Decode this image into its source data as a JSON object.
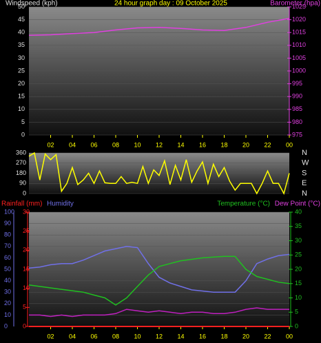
{
  "chart_data": [
    {
      "type": "line",
      "title": "24 hour graph day : 09 October 2025",
      "y_label": "Windspeed (kph)",
      "x": [
        0,
        2,
        4,
        6,
        8,
        10,
        12,
        14,
        16,
        18,
        20,
        22,
        24
      ],
      "xlim": [
        0,
        24
      ],
      "xticks": [
        {
          "value": 2,
          "label": "02"
        },
        {
          "value": 4,
          "label": "04"
        },
        {
          "value": 6,
          "label": "06"
        },
        {
          "value": 8,
          "label": "08"
        },
        10,
        12,
        14,
        16,
        18,
        20,
        22,
        {
          "value": 24,
          "label": "00"
        }
      ],
      "ylim": [
        0,
        50
      ],
      "yticks": [
        0,
        5,
        10,
        15,
        20,
        25,
        30,
        35,
        40,
        45,
        50
      ],
      "y2lim": [
        975,
        1025
      ],
      "y2ticks": [
        975,
        980,
        985,
        990,
        995,
        1000,
        1005,
        1010,
        1015,
        1020,
        1025
      ],
      "series": [
        {
          "name": "Barometer (hpa)",
          "color": "#e040e0",
          "axis": "y2",
          "values": [
            1013.9,
            1014.1,
            1014.6,
            1015,
            1016,
            1016.8,
            1017,
            1016.6,
            1016,
            1015.8,
            1017,
            1019,
            1020.5
          ]
        }
      ]
    },
    {
      "type": "line",
      "x": [
        0,
        0.5,
        1,
        1.5,
        2,
        2.5,
        3,
        3.5,
        4,
        4.5,
        5,
        5.5,
        6,
        6.5,
        7,
        7.5,
        8,
        8.5,
        9,
        9.5,
        10,
        10.5,
        11,
        11.5,
        12,
        12.5,
        13,
        13.5,
        14,
        14.5,
        15,
        15.5,
        16,
        16.5,
        17,
        17.5,
        18,
        18.5,
        19,
        19.5,
        20,
        20.5,
        21,
        21.5,
        22,
        22.5,
        23,
        23.5,
        24
      ],
      "xlim": [
        0,
        24
      ],
      "ylim": [
        0,
        360
      ],
      "yticks": [
        0,
        90,
        180,
        270,
        360
      ],
      "y2ticks": [
        {
          "value": 360,
          "label": "N"
        },
        {
          "value": 270,
          "label": "W"
        },
        {
          "value": 180,
          "label": "S"
        },
        {
          "value": 90,
          "label": "E"
        },
        {
          "value": 0,
          "label": "N"
        }
      ],
      "series": [
        {
          "color": "#ffff00",
          "axis": "y",
          "values": [
            330,
            360,
            120,
            350,
            300,
            345,
            20,
            90,
            230,
            80,
            120,
            180,
            90,
            200,
            95,
            90,
            90,
            150,
            90,
            100,
            90,
            240,
            90,
            210,
            160,
            290,
            80,
            250,
            120,
            300,
            100,
            200,
            280,
            90,
            260,
            150,
            230,
            110,
            30,
            90,
            90,
            90,
            0,
            90,
            200,
            90,
            90,
            0,
            180
          ]
        }
      ]
    },
    {
      "type": "line",
      "x": [
        0,
        1,
        2,
        3,
        4,
        5,
        6,
        7,
        8,
        9,
        10,
        11,
        12,
        13,
        14,
        15,
        16,
        17,
        18,
        19,
        20,
        21,
        22,
        23,
        24
      ],
      "xlim": [
        0,
        24
      ],
      "xticks": [
        {
          "value": 2,
          "label": "02"
        },
        {
          "value": 4,
          "label": "04"
        },
        {
          "value": 6,
          "label": "06"
        },
        {
          "value": 8,
          "label": "08"
        },
        10,
        12,
        14,
        16,
        18,
        20,
        22,
        {
          "value": 24,
          "label": "00"
        }
      ],
      "ylim": [
        0,
        100
      ],
      "yticks": [
        0,
        10,
        20,
        30,
        40,
        50,
        60,
        70,
        80,
        90,
        100
      ],
      "y3lim": [
        0,
        30
      ],
      "y3ticks": [
        0,
        5,
        10,
        15,
        20,
        25,
        30
      ],
      "y2lim": [
        0,
        40
      ],
      "y2ticks": [
        0,
        5,
        10,
        15,
        20,
        25,
        30,
        35,
        40
      ],
      "series": [
        {
          "name": "Rainfall (mm)",
          "color": "#ff2020",
          "axis": "y3",
          "values": [
            0,
            0,
            0,
            0,
            0,
            0,
            0,
            0,
            0,
            0,
            0,
            0,
            0,
            0,
            0,
            0,
            0,
            0,
            0,
            0,
            0,
            0,
            0,
            0,
            0
          ]
        },
        {
          "name": "Humidity",
          "color": "#7070e8",
          "axis": "y",
          "values": [
            51,
            52,
            54,
            55,
            55,
            58,
            62,
            66,
            68,
            70,
            69,
            55,
            43,
            38,
            35,
            32,
            31,
            30,
            30,
            30,
            40,
            55,
            59,
            62,
            63
          ]
        },
        {
          "name": "Temperature (°C)",
          "color": "#20c020",
          "axis": "y2",
          "values": [
            14.5,
            14,
            13.5,
            13,
            12.5,
            12,
            11,
            10,
            7.5,
            10,
            14,
            18,
            21,
            22,
            23,
            23.5,
            24,
            24.3,
            24.5,
            24.5,
            20,
            17.5,
            16.5,
            15.5,
            15
          ]
        },
        {
          "name": "Dew Point (°C)",
          "color": "#c020c0",
          "axis": "y2",
          "values": [
            4,
            4,
            3.5,
            4,
            3.5,
            4,
            4,
            4,
            4.5,
            6,
            5.5,
            5,
            5.5,
            5,
            4.5,
            5,
            5,
            4.5,
            4.5,
            5,
            6,
            6.5,
            6,
            6,
            6
          ]
        }
      ]
    }
  ]
}
